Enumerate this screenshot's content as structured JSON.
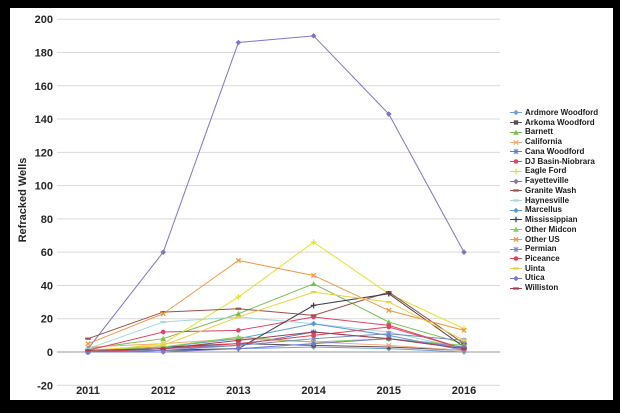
{
  "window": {
    "frame_color": "#000000",
    "panel_color": "#ffffff"
  },
  "chart_data": {
    "type": "line",
    "title": "",
    "xlabel": "",
    "ylabel": "Refracked Wells",
    "x": [
      2011,
      2012,
      2013,
      2014,
      2015,
      2016
    ],
    "ylim": [
      -20,
      200
    ],
    "ytick_step": 20,
    "grid": "horizontal gridlines only",
    "legend_position": "right",
    "axis_text_color": "#262626",
    "gridline_color": "#d9d9d9",
    "zeroline_color": "#9a9a9a",
    "series": [
      {
        "name": "Ardmore Woodford",
        "color": "#6fa0d6",
        "marker": "diamond",
        "values": [
          0,
          1,
          2,
          3,
          2,
          0
        ]
      },
      {
        "name": "Arkoma Woodford",
        "color": "#5d4e52",
        "marker": "square",
        "values": [
          1,
          3,
          5,
          4,
          3,
          1
        ]
      },
      {
        "name": "Barnett",
        "color": "#78be50",
        "marker": "triangle",
        "values": [
          2,
          8,
          23,
          41,
          18,
          5
        ]
      },
      {
        "name": "California",
        "color": "#f5a978",
        "marker": "x",
        "values": [
          3,
          5,
          8,
          6,
          4,
          1
        ]
      },
      {
        "name": "Cana Woodford",
        "color": "#5b7ec9",
        "marker": "asterisk",
        "values": [
          0,
          2,
          4,
          12,
          8,
          2
        ]
      },
      {
        "name": "DJ Basin-Niobrara",
        "color": "#de4568",
        "marker": "circle",
        "values": [
          1,
          12,
          13,
          21,
          16,
          2
        ]
      },
      {
        "name": "Eagle Ford",
        "color": "#e6e02e",
        "marker": "plus",
        "values": [
          0,
          5,
          33,
          66,
          35,
          14
        ]
      },
      {
        "name": "Fayetteville",
        "color": "#7d74c9",
        "marker": "diamond",
        "values": [
          2,
          60,
          186,
          190,
          143,
          60
        ]
      },
      {
        "name": "Granite Wash",
        "color": "#9c5048",
        "marker": "dash",
        "values": [
          8,
          24,
          26,
          22,
          36,
          5
        ]
      },
      {
        "name": "Haynesville",
        "color": "#a5d8e2",
        "marker": "dash",
        "values": [
          2,
          18,
          21,
          17,
          12,
          2
        ]
      },
      {
        "name": "Marcellus",
        "color": "#5b9bd5",
        "marker": "diamond",
        "values": [
          0,
          3,
          8,
          17,
          10,
          1
        ]
      },
      {
        "name": "Mississippian",
        "color": "#3f3f46",
        "marker": "plus",
        "values": [
          0,
          1,
          2,
          28,
          35,
          3
        ]
      },
      {
        "name": "Other Midcon",
        "color": "#7ed157",
        "marker": "triangle",
        "values": [
          1,
          3,
          9,
          6,
          8,
          4
        ]
      },
      {
        "name": "Other US",
        "color": "#f0953f",
        "marker": "x",
        "values": [
          5,
          23,
          55,
          46,
          25,
          13
        ]
      },
      {
        "name": "Permian",
        "color": "#7588c1",
        "marker": "asterisk",
        "values": [
          0,
          1,
          4,
          8,
          11,
          7
        ]
      },
      {
        "name": "Piceance",
        "color": "#e0445a",
        "marker": "circle",
        "values": [
          0,
          2,
          5,
          10,
          15,
          2
        ]
      },
      {
        "name": "Uinta",
        "color": "#edd13f",
        "marker": "dash",
        "values": [
          1,
          4,
          21,
          36,
          30,
          7
        ]
      },
      {
        "name": "Utica",
        "color": "#7678d4",
        "marker": "diamond",
        "values": [
          0,
          0,
          2,
          5,
          8,
          3
        ]
      },
      {
        "name": "Williston",
        "color": "#a63a4e",
        "marker": "dash",
        "values": [
          1,
          2,
          7,
          12,
          8,
          2
        ]
      }
    ]
  }
}
